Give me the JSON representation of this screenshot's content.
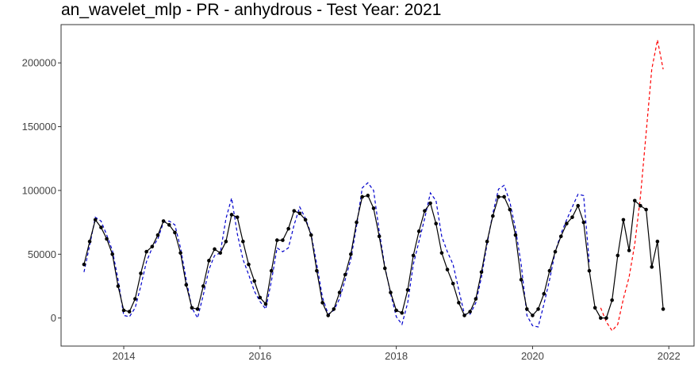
{
  "chart_data": {
    "type": "line",
    "title": "an_wavelet_mlp - PR - anhydrous - Test Year: 2021",
    "xlabel": "",
    "ylabel": "",
    "xlim": [
      2013.08,
      2022.37
    ],
    "ylim": [
      -22000,
      230000
    ],
    "x_ticks": [
      2014,
      2016,
      2018,
      2020,
      2022
    ],
    "x_tick_labels": [
      "2014",
      "2016",
      "2018",
      "2020",
      "2022"
    ],
    "y_ticks": [
      0,
      50000,
      100000,
      150000,
      200000
    ],
    "y_tick_labels": [
      "0",
      "50000",
      "100000",
      "150000",
      "200000"
    ],
    "grid": false,
    "series": [
      {
        "role": "actual",
        "color": "#000000",
        "style": "solid-with-points",
        "x": [
          2013.417,
          2013.5,
          2013.583,
          2013.667,
          2013.75,
          2013.833,
          2013.917,
          2014.0,
          2014.083,
          2014.167,
          2014.25,
          2014.333,
          2014.417,
          2014.5,
          2014.583,
          2014.667,
          2014.75,
          2014.833,
          2014.917,
          2015.0,
          2015.083,
          2015.167,
          2015.25,
          2015.333,
          2015.417,
          2015.5,
          2015.583,
          2015.667,
          2015.75,
          2015.833,
          2015.917,
          2016.0,
          2016.083,
          2016.167,
          2016.25,
          2016.333,
          2016.417,
          2016.5,
          2016.583,
          2016.667,
          2016.75,
          2016.833,
          2016.917,
          2017.0,
          2017.083,
          2017.167,
          2017.25,
          2017.333,
          2017.417,
          2017.5,
          2017.583,
          2017.667,
          2017.75,
          2017.833,
          2017.917,
          2018.0,
          2018.083,
          2018.167,
          2018.25,
          2018.333,
          2018.417,
          2018.5,
          2018.583,
          2018.667,
          2018.75,
          2018.833,
          2018.917,
          2019.0,
          2019.083,
          2019.167,
          2019.25,
          2019.333,
          2019.417,
          2019.5,
          2019.583,
          2019.667,
          2019.75,
          2019.833,
          2019.917,
          2020.0,
          2020.083,
          2020.167,
          2020.25,
          2020.333,
          2020.417,
          2020.5,
          2020.583,
          2020.667,
          2020.75,
          2020.833,
          2020.917,
          2021.0,
          2021.083,
          2021.167,
          2021.25,
          2021.333,
          2021.417,
          2021.5,
          2021.583,
          2021.667,
          2021.75,
          2021.833,
          2021.917
        ],
        "y": [
          42000,
          60000,
          77000,
          71000,
          62000,
          50000,
          25000,
          6000,
          5000,
          15000,
          35000,
          52000,
          56000,
          65000,
          76000,
          73000,
          67000,
          51000,
          26000,
          8000,
          7000,
          25000,
          45000,
          54000,
          51000,
          60000,
          81000,
          79000,
          60000,
          42000,
          29000,
          16000,
          11000,
          37000,
          61000,
          61000,
          70000,
          84000,
          82000,
          77000,
          65000,
          37000,
          12000,
          2000,
          7000,
          20000,
          34000,
          50000,
          75000,
          95000,
          96000,
          86000,
          64000,
          39000,
          20000,
          6000,
          4000,
          22000,
          49000,
          68000,
          84000,
          90000,
          74000,
          51000,
          38000,
          27000,
          12000,
          2000,
          5000,
          15000,
          36000,
          60000,
          80000,
          95000,
          95000,
          85000,
          65000,
          30000,
          7000,
          2000,
          7000,
          19000,
          37000,
          52000,
          64000,
          74000,
          79000,
          88000,
          75000,
          37000,
          8000,
          0,
          0,
          14000,
          49000,
          77000,
          53000,
          92000,
          88000,
          85000,
          40000,
          60000,
          7000
        ]
      },
      {
        "role": "fitted",
        "color": "#0000cc",
        "style": "dashed",
        "x": [
          2013.417,
          2013.5,
          2013.583,
          2013.667,
          2013.75,
          2013.833,
          2013.917,
          2014.0,
          2014.083,
          2014.167,
          2014.25,
          2014.333,
          2014.417,
          2014.5,
          2014.583,
          2014.667,
          2014.75,
          2014.833,
          2014.917,
          2015.0,
          2015.083,
          2015.167,
          2015.25,
          2015.333,
          2015.417,
          2015.5,
          2015.583,
          2015.667,
          2015.75,
          2015.833,
          2015.917,
          2016.0,
          2016.083,
          2016.167,
          2016.25,
          2016.333,
          2016.417,
          2016.5,
          2016.583,
          2016.667,
          2016.75,
          2016.833,
          2016.917,
          2017.0,
          2017.083,
          2017.167,
          2017.25,
          2017.333,
          2017.417,
          2017.5,
          2017.583,
          2017.667,
          2017.75,
          2017.833,
          2017.917,
          2018.0,
          2018.083,
          2018.167,
          2018.25,
          2018.333,
          2018.417,
          2018.5,
          2018.583,
          2018.667,
          2018.75,
          2018.833,
          2018.917,
          2019.0,
          2019.083,
          2019.167,
          2019.25,
          2019.333,
          2019.417,
          2019.5,
          2019.583,
          2019.667,
          2019.75,
          2019.833,
          2019.917,
          2020.0,
          2020.083,
          2020.167,
          2020.25,
          2020.333,
          2020.417,
          2020.5,
          2020.583,
          2020.667,
          2020.75,
          2020.833
        ],
        "y": [
          36000,
          57000,
          79000,
          76000,
          65000,
          53000,
          30000,
          2000,
          1000,
          8000,
          25000,
          44000,
          55000,
          62000,
          75000,
          76000,
          73000,
          55000,
          30000,
          8000,
          0,
          18000,
          38000,
          49000,
          51000,
          78000,
          94000,
          66000,
          46000,
          34000,
          21000,
          13000,
          7000,
          29000,
          55000,
          52000,
          55000,
          73000,
          87000,
          78000,
          66000,
          42000,
          16000,
          3000,
          6000,
          15000,
          30000,
          46000,
          72000,
          102000,
          106000,
          100000,
          68000,
          40000,
          19000,
          1000,
          -5000,
          12000,
          42000,
          60000,
          78000,
          98000,
          92000,
          64000,
          52000,
          42000,
          22000,
          3000,
          3000,
          12000,
          32000,
          58000,
          82000,
          101000,
          104000,
          91000,
          70000,
          42000,
          2000,
          -6000,
          -7000,
          11000,
          30000,
          52000,
          66000,
          77000,
          87000,
          97000,
          96000,
          43000
        ]
      },
      {
        "role": "forecast",
        "color": "#ff0000",
        "style": "dashed",
        "x": [
          2021.0,
          2021.083,
          2021.167,
          2021.25,
          2021.333,
          2021.417,
          2021.5,
          2021.583,
          2021.667,
          2021.75,
          2021.833,
          2021.917
        ],
        "y": [
          8000,
          -3000,
          -10000,
          -5000,
          15000,
          32000,
          58000,
          95000,
          145000,
          195000,
          218000,
          195000
        ]
      }
    ]
  }
}
